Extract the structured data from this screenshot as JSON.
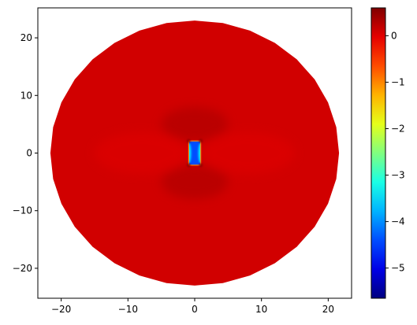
{
  "chart_data": {
    "type": "heatmap",
    "title": "",
    "xlabel": "",
    "ylabel": "",
    "xlim": [
      -23.5,
      23.5
    ],
    "ylim": [
      -25.2,
      25.2
    ],
    "x_ticks": [
      -20,
      -10,
      0,
      10,
      20
    ],
    "y_ticks": [
      -20,
      -10,
      0,
      10,
      20
    ],
    "x_tick_labels": [
      "−20",
      "−10",
      "0",
      "10",
      "20"
    ],
    "y_tick_labels": [
      "−20",
      "−10",
      "0",
      "10",
      "20"
    ],
    "grid": false,
    "colormap": "jet",
    "colorbar": {
      "vmin": -5.65,
      "vmax": 0.6,
      "ticks": [
        0,
        -1,
        -2,
        -3,
        -4,
        -5
      ],
      "tick_labels": [
        "0",
        "−1",
        "−2",
        "−3",
        "−4",
        "−5"
      ]
    },
    "domain": {
      "shape": "disk",
      "center": [
        0,
        0
      ],
      "radius": 23,
      "background_value": 0.1
    },
    "inclusion": {
      "shape": "rectangle",
      "x": [
        -0.9,
        0.9
      ],
      "y": [
        -2.1,
        2.1
      ],
      "value": -4.4
    },
    "features": [
      {
        "label": "edge-left",
        "x": -0.9,
        "y": 0,
        "value": -3.4
      },
      {
        "label": "edge-right",
        "x": 0.9,
        "y": 0,
        "value": -3.4
      },
      {
        "label": "corner-top-left",
        "x": -0.9,
        "y": 2.1,
        "value": 0.55
      },
      {
        "label": "corner-top-right",
        "x": 0.9,
        "y": 2.1,
        "value": 0.55
      },
      {
        "label": "corner-bottom-left",
        "x": -0.9,
        "y": -2.1,
        "value": 0.55
      },
      {
        "label": "corner-bottom-right",
        "x": 0.9,
        "y": -2.1,
        "value": 0.55
      },
      {
        "label": "lobe-top",
        "x": 0,
        "y": 5,
        "value": 0.35
      },
      {
        "label": "lobe-bottom",
        "x": 0,
        "y": -5,
        "value": 0.35
      },
      {
        "label": "lobe-left",
        "x": -8,
        "y": 0,
        "value": 0.0
      },
      {
        "label": "lobe-right",
        "x": 8,
        "y": 0,
        "value": 0.0
      }
    ]
  }
}
